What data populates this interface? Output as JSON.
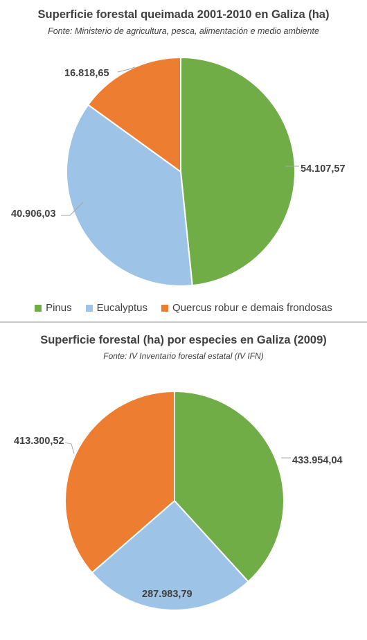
{
  "colors": {
    "pinus": "#70ad47",
    "eucalyptus": "#9dc3e6",
    "quercus": "#ed7d31"
  },
  "chart_data": [
    {
      "type": "pie",
      "title": "Superficie forestal queimada 2001-2010 en Galiza (ha)",
      "subtitle": "Fonte: Ministerio de agricultura, pesca, alimentación e medio ambiente",
      "legend": "bottom",
      "slices": [
        {
          "name": "Pinus",
          "value": 54107.57,
          "label": "54.107,57",
          "color": "#70ad47"
        },
        {
          "name": "Eucalyptus",
          "value": 40906.03,
          "label": "40.906,03",
          "color": "#9dc3e6"
        },
        {
          "name": "Quercus robur e demais frondosas",
          "value": 16818.65,
          "label": "16.818,65",
          "color": "#ed7d31"
        }
      ]
    },
    {
      "type": "pie",
      "title": "Superficie forestal (ha) por especies en Galiza (2009)",
      "subtitle": "Fonte: IV Inventario forestal estatal (IV IFN)",
      "legend": "none",
      "slices": [
        {
          "name": "Pinus",
          "value": 433954.04,
          "label": "433.954,04",
          "color": "#70ad47"
        },
        {
          "name": "Eucalyptus",
          "value": 287983.79,
          "label": "287.983,79",
          "color": "#9dc3e6"
        },
        {
          "name": "Quercus robur e demais frondosas",
          "value": 413300.52,
          "label": "413.300,52",
          "color": "#ed7d31"
        }
      ]
    }
  ]
}
